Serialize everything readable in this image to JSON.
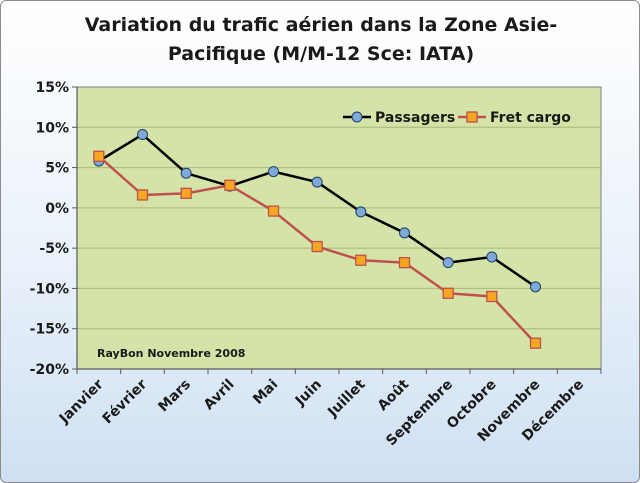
{
  "chart_data": {
    "type": "line",
    "title": "Variation du trafic aérien dans la Zone Asie-Pacifique  (M/M-12 Sce: IATA)",
    "categories": [
      "Janvier",
      "Février",
      "Mars",
      "Avril",
      "Mai",
      "Juin",
      "Juillet",
      "Août",
      "Septembre",
      "Octobre",
      "Novembre",
      "Décembre"
    ],
    "series": [
      {
        "name": "Passagers",
        "values": [
          5.8,
          9.1,
          4.3,
          2.7,
          4.5,
          3.2,
          -0.5,
          -3.1,
          -6.8,
          -6.1,
          -9.8,
          null
        ],
        "color": "#000000",
        "marker_color": "#7fa9d6"
      },
      {
        "name": "Fret cargo",
        "values": [
          6.4,
          1.6,
          1.8,
          2.8,
          -0.4,
          -4.8,
          -6.5,
          -6.8,
          -10.6,
          -11.0,
          -16.8,
          null
        ],
        "color": "#c0504d",
        "marker_color": "#f5a623"
      }
    ],
    "ylim": [
      -20,
      15
    ],
    "yticks": [
      "15%",
      "10%",
      "5%",
      "0%",
      "-5%",
      "-10%",
      "-15%",
      "-20%"
    ],
    "ytick_values": [
      15,
      10,
      5,
      0,
      -5,
      -10,
      -15,
      -20
    ],
    "xlabel": "",
    "ylabel": "",
    "grid": true,
    "legend_position": "top-right",
    "annotation": "RayBon Novembre 2008",
    "colors": {
      "plot_background": "#d4e4a8",
      "gridline": "#a8b878"
    }
  }
}
